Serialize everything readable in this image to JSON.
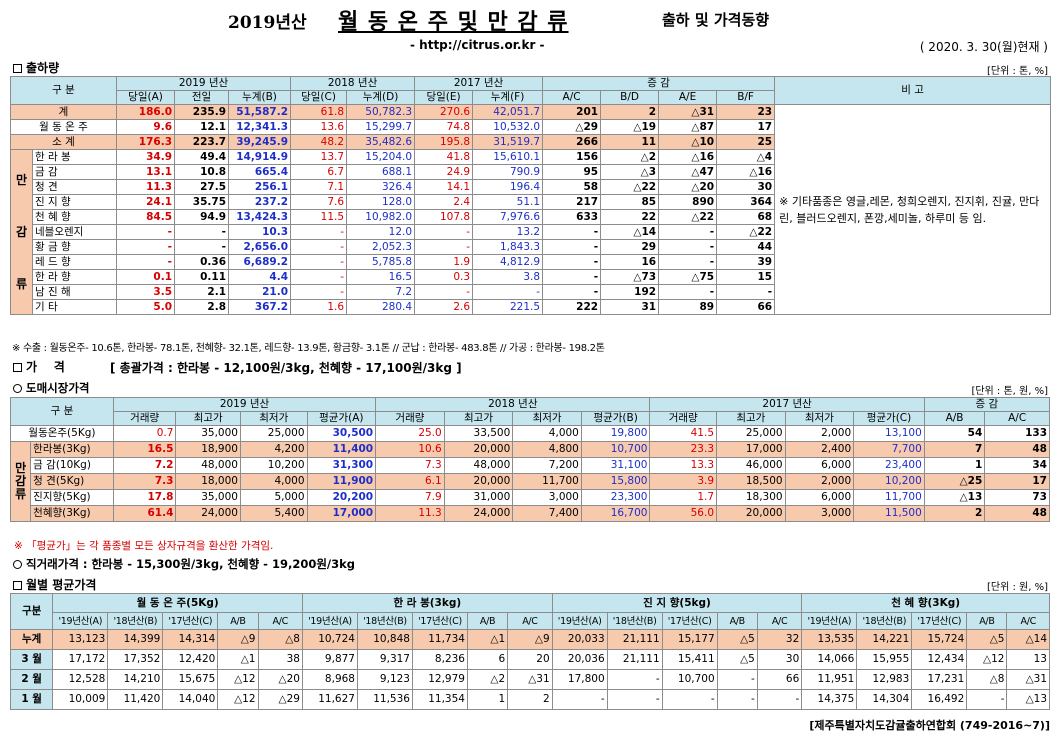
{
  "header": {
    "year_title": "2019년산",
    "main_title": "월 동 온 주 및 만 감 류",
    "sub_title": "출하 및 가격동향",
    "url": "- http://citrus.or.kr -",
    "date": "( 2020. 3. 30(월)현재 )"
  },
  "sec1": {
    "title": "출하량",
    "unit": "[단위 : 톤, %]",
    "h": {
      "gubun": "구 분",
      "y2019": "2019 년산",
      "y2018": "2018 년산",
      "y2017": "2017 년산",
      "change": "증 감",
      "remark": "비 고",
      "c_a": "당일(A)",
      "c_prev": "전일",
      "c_b": "누계(B)",
      "c_c": "당일(C)",
      "c_d": "누계(D)",
      "c_e": "당일(E)",
      "c_f": "누계(F)",
      "ac": "A/C",
      "bd": "B/D",
      "ae": "A/E",
      "bf": "B/F"
    },
    "side_label": [
      "만",
      "감",
      "류"
    ],
    "remark": "※ 기타품종은 영글,레몬, 청희오렌지, 진지휘, 진귤, 만다린, 블러드오렌지, 폰깡,세미놀, 하루미 등 임.",
    "rows": [
      [
        "계",
        "186.0",
        "235.9",
        "51,587.2",
        "61.8",
        "50,782.3",
        "270.6",
        "42,051.7",
        "201",
        "2",
        "△31",
        "23"
      ],
      [
        "월 동 온 주",
        "9.6",
        "12.1",
        "12,341.3",
        "13.6",
        "15,299.7",
        "74.8",
        "10,532.0",
        "△29",
        "△19",
        "△87",
        "17"
      ],
      [
        "소 계",
        "176.3",
        "223.7",
        "39,245.9",
        "48.2",
        "35,482.6",
        "195.8",
        "31,519.7",
        "266",
        "11",
        "△10",
        "25"
      ],
      [
        "한 라 봉",
        "34.9",
        "49.4",
        "14,914.9",
        "13.7",
        "15,204.0",
        "41.8",
        "15,610.1",
        "156",
        "△2",
        "△16",
        "△4"
      ],
      [
        "금 감",
        "13.1",
        "10.8",
        "665.4",
        "6.7",
        "688.1",
        "24.9",
        "790.9",
        "95",
        "△3",
        "△47",
        "△16"
      ],
      [
        "청 견",
        "11.3",
        "27.5",
        "256.1",
        "7.1",
        "326.4",
        "14.1",
        "196.4",
        "58",
        "△22",
        "△20",
        "30"
      ],
      [
        "진 지 향",
        "24.1",
        "35.75",
        "237.2",
        "7.6",
        "128.0",
        "2.4",
        "51.1",
        "217",
        "85",
        "890",
        "364"
      ],
      [
        "천 혜 향",
        "84.5",
        "94.9",
        "13,424.3",
        "11.5",
        "10,982.0",
        "107.8",
        "7,976.6",
        "633",
        "22",
        "△22",
        "68"
      ],
      [
        "네블오렌지",
        "-",
        "-",
        "10.3",
        "-",
        "12.0",
        "-",
        "13.2",
        "-",
        "△14",
        "-",
        "△22"
      ],
      [
        "황 금 향",
        "-",
        "-",
        "2,656.0",
        "-",
        "2,052.3",
        "-",
        "1,843.3",
        "-",
        "29",
        "-",
        "44"
      ],
      [
        "레 드 향",
        "-",
        "0.36",
        "6,689.2",
        "-",
        "5,785.8",
        "1.9",
        "4,812.9",
        "-",
        "16",
        "-",
        "39"
      ],
      [
        "한 라 향",
        "0.1",
        "0.11",
        "4.4",
        "-",
        "16.5",
        "0.3",
        "3.8",
        "-",
        "△73",
        "△75",
        "15"
      ],
      [
        "남 진 해",
        "3.5",
        "2.1",
        "21.0",
        "-",
        "7.2",
        "-",
        "-",
        "-",
        "192",
        "-",
        "-"
      ],
      [
        "기 타",
        "5.0",
        "2.8",
        "367.2",
        "1.6",
        "280.4",
        "2.6",
        "221.5",
        "222",
        "31",
        "89",
        "66"
      ]
    ],
    "footnote": "※ 수출 : 월동온주- 10.6톤, 한라봉- 78.1톤, 천혜향- 32.1톤, 레드향- 13.9톤, 황금향- 3.1톤  // 군납 : 한라봉- 483.8톤  // 가공 : 한라봉- 198.2톤"
  },
  "sec2": {
    "title": "가    격",
    "summary": "[ 총괄가격 : 한라봉 - 12,100원/3kg, 천혜향 - 17,100원/3kg ]",
    "market_title": "도매시장가격",
    "unit": "[단위 : 톤, 원, %]",
    "h": {
      "gubun": "구 분",
      "y2019": "2019 년산",
      "y2018": "2018 년산",
      "y2017": "2017 년산",
      "change": "증 감",
      "vol": "거래량",
      "max": "최고가",
      "min": "최저가",
      "avg_a": "평균가(A)",
      "avg_b": "평균가(B)",
      "avg_c": "평균가(C)",
      "ab": "A/B",
      "ac": "A/C"
    },
    "side_label": [
      "만",
      "감",
      "류"
    ],
    "rows": [
      [
        "월동온주(5Kg)",
        "0.7",
        "35,000",
        "25,000",
        "30,500",
        "25.0",
        "33,500",
        "4,000",
        "19,800",
        "41.5",
        "25,000",
        "2,000",
        "13,100",
        "54",
        "133"
      ],
      [
        "한라봉(3Kg)",
        "16.5",
        "18,900",
        "4,200",
        "11,400",
        "10.6",
        "20,000",
        "4,800",
        "10,700",
        "23.3",
        "17,000",
        "2,400",
        "7,700",
        "7",
        "48"
      ],
      [
        "금 감(10Kg)",
        "7.2",
        "48,000",
        "10,200",
        "31,300",
        "7.3",
        "48,000",
        "7,200",
        "31,100",
        "13.3",
        "46,000",
        "6,000",
        "23,400",
        "1",
        "34"
      ],
      [
        "청 견(5Kg)",
        "7.3",
        "18,000",
        "4,000",
        "11,900",
        "6.1",
        "20,000",
        "11,700",
        "15,800",
        "3.9",
        "18,500",
        "2,000",
        "10,200",
        "△25",
        "17"
      ],
      [
        "진지향(5Kg)",
        "17.8",
        "35,000",
        "5,000",
        "20,200",
        "7.9",
        "31,000",
        "3,000",
        "23,300",
        "1.7",
        "18,300",
        "6,000",
        "11,700",
        "△13",
        "73"
      ],
      [
        "천혜향(3Kg)",
        "61.4",
        "24,000",
        "5,400",
        "17,000",
        "11.3",
        "24,000",
        "7,400",
        "16,700",
        "56.0",
        "20,000",
        "3,000",
        "11,500",
        "2",
        "48"
      ]
    ],
    "note": "※ 「평균가」는 각 품종별 모든 상자규격을 환산한 가격임.",
    "direct": "직거래가격 : 한라봉 - 15,300원/3kg,  천혜향 - 19,200원/3kg"
  },
  "sec3": {
    "title": "월별 평균가격",
    "unit": "[단위 : 원, %]",
    "gubun": "구분",
    "groups": [
      "월 동 온 주(5Kg)",
      "한 라 봉(3kg)",
      "진 지 향(5kg)",
      "천 혜 향(3Kg)"
    ],
    "sub": [
      "'19년산(A)",
      "'18년산(B)",
      "'17년산(C)",
      "A/B",
      "A/C"
    ],
    "rows": [
      [
        "누계",
        "13,123",
        "14,399",
        "14,314",
        "△9",
        "△8",
        "10,724",
        "10,848",
        "11,734",
        "△1",
        "△9",
        "20,033",
        "21,111",
        "15,177",
        "△5",
        "32",
        "13,535",
        "14,221",
        "15,724",
        "△5",
        "△14"
      ],
      [
        "3 월",
        "17,172",
        "17,352",
        "12,420",
        "△1",
        "38",
        "9,877",
        "9,317",
        "8,236",
        "6",
        "20",
        "20,036",
        "21,111",
        "15,411",
        "△5",
        "30",
        "14,066",
        "15,955",
        "12,434",
        "△12",
        "13"
      ],
      [
        "2 월",
        "12,528",
        "14,210",
        "15,675",
        "△12",
        "△20",
        "8,968",
        "9,123",
        "12,979",
        "△2",
        "△31",
        "17,800",
        "-",
        "10,700",
        "-",
        "66",
        "11,951",
        "12,983",
        "17,231",
        "△8",
        "△31"
      ],
      [
        "1 월",
        "10,009",
        "11,420",
        "14,040",
        "△12",
        "△29",
        "11,627",
        "11,536",
        "11,354",
        "1",
        "2",
        "-",
        "-",
        "-",
        "-",
        "-",
        "14,375",
        "14,304",
        "16,492",
        "-",
        "△13"
      ]
    ]
  },
  "footer": "[제주특별자치도감귤출하연합회 (749-2016~7)]",
  "colors": {
    "header_bg": "#c5e6ee",
    "highlight_bg": "#f7c9ad",
    "red": "#d70000",
    "blue": "#1e2fc8"
  }
}
